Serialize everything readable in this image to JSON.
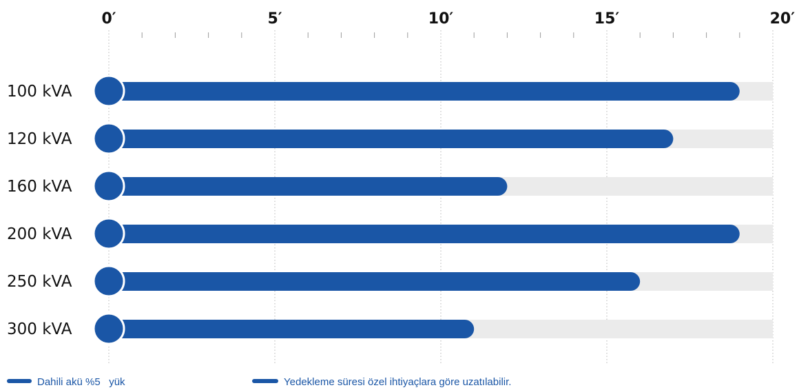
{
  "chart_data": {
    "type": "bar",
    "orientation": "horizontal",
    "categories": [
      "100 kVA",
      "120 kVA",
      "160 kVA",
      "200 kVA",
      "250 kVA",
      "300 kVA"
    ],
    "values": [
      19,
      17,
      12,
      19,
      16,
      11
    ],
    "xlim": [
      0,
      20
    ],
    "x_ticks": [
      "0′",
      "5′",
      "10′",
      "15′",
      "20′"
    ],
    "x_tick_values": [
      0,
      5,
      10,
      15,
      20
    ],
    "x_minor_step": 1,
    "grid": "vertical dotted at major ticks",
    "bar_color": "#1a56a6",
    "track_color": "#ebebeb",
    "legend": [
      {
        "label": "Dahili akü %5   yük",
        "color": "#1a56a6"
      },
      {
        "label": "Yedekleme süresi özel ihtiyaçlara göre uzatılabilir.",
        "color": "#1a56a6"
      }
    ],
    "legend_position": "bottom-left"
  }
}
